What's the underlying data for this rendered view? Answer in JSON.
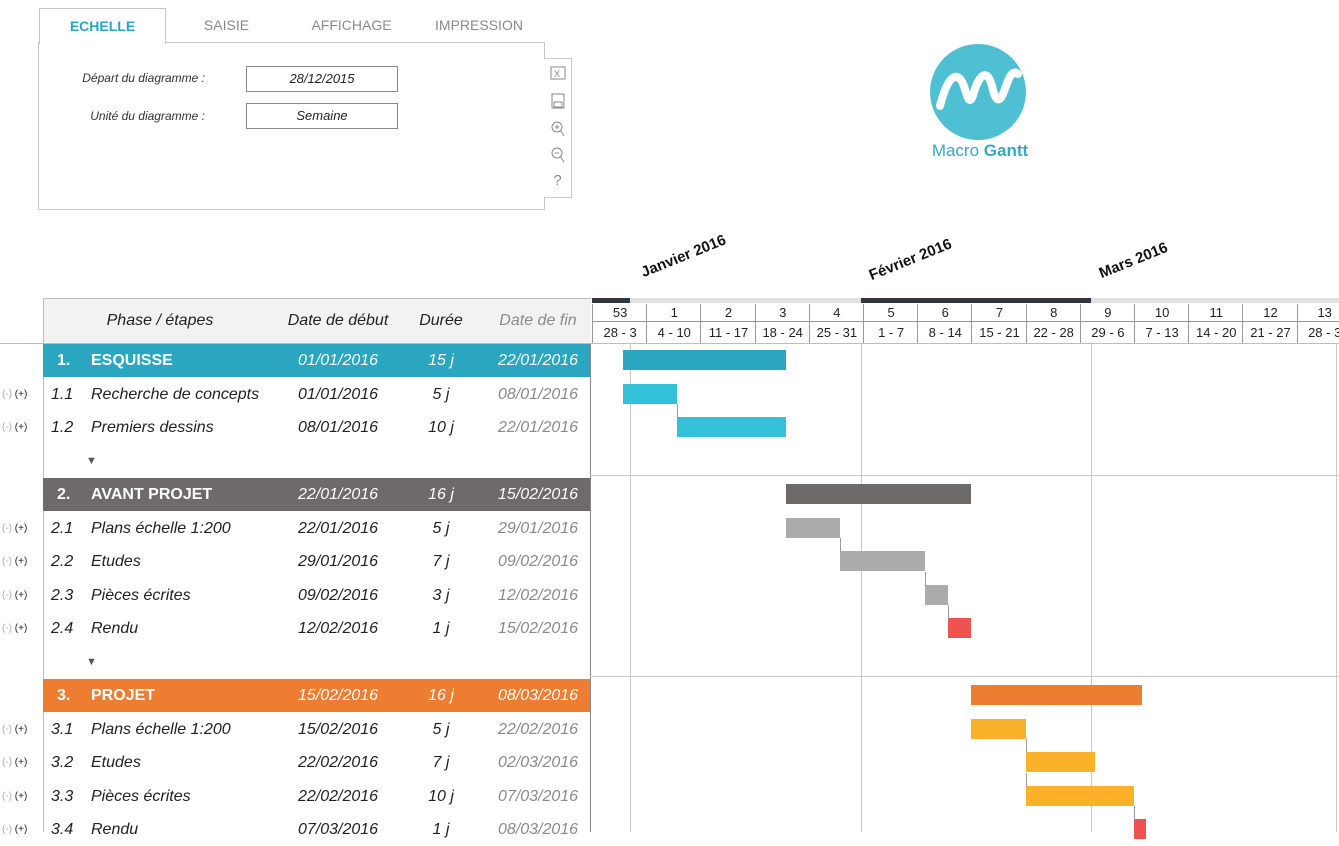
{
  "tabs": [
    "ECHELLE",
    "SAISIE",
    "AFFICHAGE",
    "IMPRESSION"
  ],
  "settings": {
    "start_label": "Départ du  diagramme :",
    "start_value": "28/12/2015",
    "unit_label": "Unité du diagramme :",
    "unit_value": "Semaine"
  },
  "toolbar_icons": [
    "excel-icon",
    "save-icon",
    "zoom-in-icon",
    "zoom-out-icon",
    "help-icon"
  ],
  "logo": {
    "brand_light": "Macro",
    "brand_bold": "Gantt",
    "color": "#4fbfd4"
  },
  "months": [
    "Janvier 2016",
    "Février 2016",
    "Mars 2016"
  ],
  "table_headers": {
    "phase": "Phase / étapes",
    "start": "Date de début",
    "duration": "Durée",
    "end": "Date de fin"
  },
  "weeks": [
    {
      "n": "53",
      "r": "28 - 3"
    },
    {
      "n": "1",
      "r": "4 - 10"
    },
    {
      "n": "2",
      "r": "11 - 17"
    },
    {
      "n": "3",
      "r": "18 - 24"
    },
    {
      "n": "4",
      "r": "25 - 31"
    },
    {
      "n": "5",
      "r": "1 - 7"
    },
    {
      "n": "6",
      "r": "8 - 14"
    },
    {
      "n": "7",
      "r": "15 - 21"
    },
    {
      "n": "8",
      "r": "22 - 28"
    },
    {
      "n": "9",
      "r": "29 - 6"
    },
    {
      "n": "10",
      "r": "7 - 13"
    },
    {
      "n": "11",
      "r": "14 - 20"
    },
    {
      "n": "12",
      "r": "21 - 27"
    },
    {
      "n": "13",
      "r": "28 - 3"
    }
  ],
  "ctrl": {
    "minus": "(-)",
    "plus": "(+)",
    "expand": "▼"
  },
  "rows": [
    {
      "type": "phase",
      "num": "1.",
      "name": "ESQUISSE",
      "start": "01/01/2016",
      "dur": "15 j",
      "end": "22/01/2016",
      "color": "#2aa6c0"
    },
    {
      "type": "task",
      "num": "1.1",
      "name": "Recherche de concepts",
      "start": "01/01/2016",
      "dur": "5 j",
      "end": "08/01/2016",
      "color": "#33c1d9"
    },
    {
      "type": "task",
      "num": "1.2",
      "name": "Premiers dessins",
      "start": "08/01/2016",
      "dur": "10 j",
      "end": "22/01/2016",
      "color": "#33c1d9"
    },
    {
      "type": "spacer"
    },
    {
      "type": "phase",
      "num": "2.",
      "name": "AVANT PROJET",
      "start": "22/01/2016",
      "dur": "16 j",
      "end": "15/02/2016",
      "color": "#6e6a6a"
    },
    {
      "type": "task",
      "num": "2.1",
      "name": "Plans échelle 1:200",
      "start": "22/01/2016",
      "dur": "5 j",
      "end": "29/01/2016",
      "color": "#ababab"
    },
    {
      "type": "task",
      "num": "2.2",
      "name": "Etudes",
      "start": "29/01/2016",
      "dur": "7 j",
      "end": "09/02/2016",
      "color": "#ababab"
    },
    {
      "type": "task",
      "num": "2.3",
      "name": "Pièces écrites",
      "start": "09/02/2016",
      "dur": "3 j",
      "end": "12/02/2016",
      "color": "#ababab"
    },
    {
      "type": "task",
      "num": "2.4",
      "name": "Rendu",
      "start": "12/02/2016",
      "dur": "1 j",
      "end": "15/02/2016",
      "color": "#ef5350"
    },
    {
      "type": "spacer"
    },
    {
      "type": "phase",
      "num": "3.",
      "name": "PROJET",
      "start": "15/02/2016",
      "dur": "16 j",
      "end": "08/03/2016",
      "color": "#ed7d31"
    },
    {
      "type": "task",
      "num": "3.1",
      "name": "Plans échelle 1:200",
      "start": "15/02/2016",
      "dur": "5 j",
      "end": "22/02/2016",
      "color": "#fbb22a"
    },
    {
      "type": "task",
      "num": "3.2",
      "name": "Etudes",
      "start": "22/02/2016",
      "dur": "7 j",
      "end": "02/03/2016",
      "color": "#fbb22a"
    },
    {
      "type": "task",
      "num": "3.3",
      "name": "Pièces écrites",
      "start": "22/02/2016",
      "dur": "10 j",
      "end": "07/03/2016",
      "color": "#fbb22a"
    },
    {
      "type": "task",
      "num": "3.4",
      "name": "Rendu",
      "start": "07/03/2016",
      "dur": "1 j",
      "end": "08/03/2016",
      "color": "#ef5350"
    }
  ]
}
